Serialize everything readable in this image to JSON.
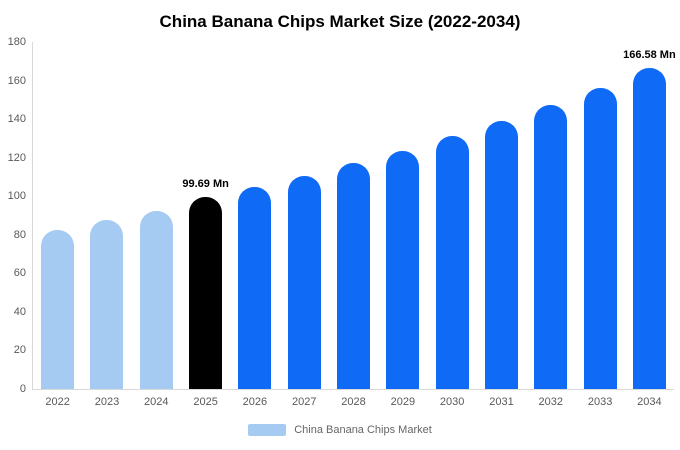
{
  "title": "China Banana Chips Market Size (2022-2034)",
  "legend": {
    "label": "China Banana Chips Market",
    "swatch_color": "#a6cbf2"
  },
  "chart_data": {
    "type": "bar",
    "title": "China Banana Chips Market Size (2022-2034)",
    "categories": [
      "2022",
      "2023",
      "2024",
      "2025",
      "2026",
      "2027",
      "2028",
      "2029",
      "2030",
      "2031",
      "2032",
      "2033",
      "2034"
    ],
    "values": [
      82.5,
      87.5,
      92.5,
      99.69,
      105,
      110.5,
      117,
      123.5,
      131,
      139,
      147.5,
      156,
      166.58
    ],
    "bar_colors": [
      "light",
      "light",
      "light",
      "black",
      "blue",
      "blue",
      "blue",
      "blue",
      "blue",
      "blue",
      "blue",
      "blue",
      "blue"
    ],
    "palette": {
      "light": "#a6cbf2",
      "blue": "#0f6af5",
      "black": "#000000"
    },
    "annotations": [
      {
        "index": 3,
        "text": "99.69 Mn"
      },
      {
        "index": 12,
        "text": "166.58 Mn"
      }
    ],
    "xlabel": "",
    "ylabel": "",
    "ylim": [
      0,
      180
    ],
    "yticks": [
      0,
      20,
      40,
      60,
      80,
      100,
      120,
      140,
      160,
      180
    ],
    "grid": false,
    "legend_entries": [
      "China Banana Chips Market"
    ],
    "legend_position": "bottom"
  }
}
